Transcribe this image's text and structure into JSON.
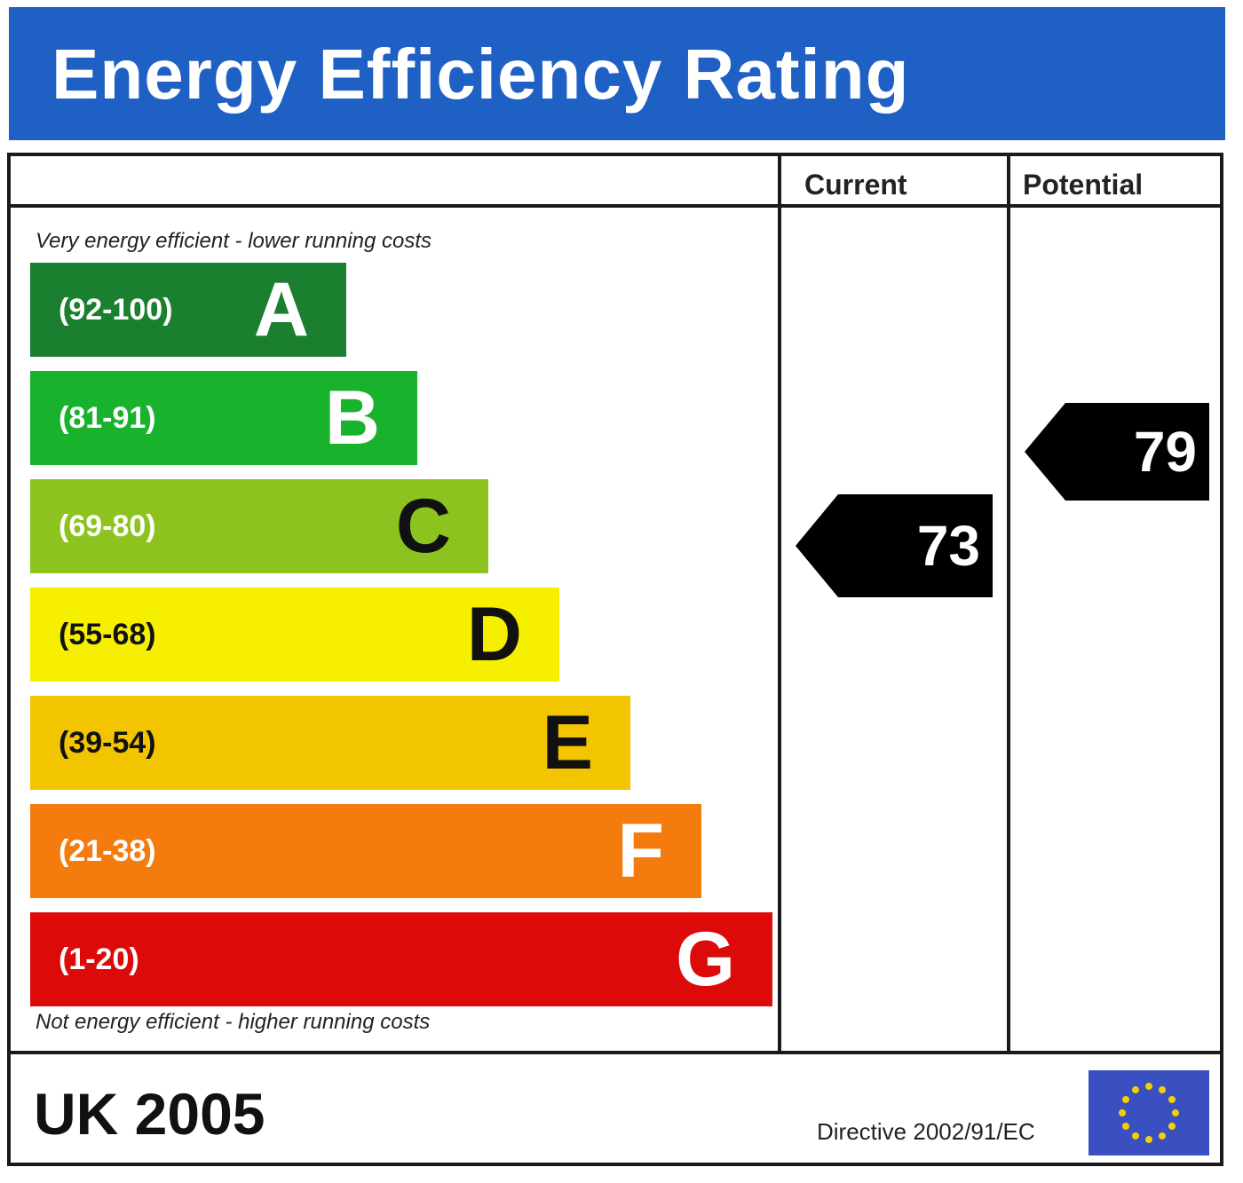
{
  "header": {
    "title": "Energy Efficiency Rating"
  },
  "columns": {
    "current": "Current",
    "potential": "Potential"
  },
  "chart_data": {
    "type": "bar",
    "title": "Energy Efficiency Rating",
    "top_note": "Very energy efficient - lower running costs",
    "bottom_note": "Not energy efficient - higher running costs",
    "bands": [
      {
        "letter": "A",
        "range": "(92-100)",
        "color": "#1a7f2e",
        "range_color": "#ffffff",
        "letter_color": "#ffffff",
        "min": 92,
        "max": 100
      },
      {
        "letter": "B",
        "range": "(81-91)",
        "color": "#19b22c",
        "range_color": "#ffffff",
        "letter_color": "#ffffff",
        "min": 81,
        "max": 91
      },
      {
        "letter": "C",
        "range": "(69-80)",
        "color": "#8cc31f",
        "range_color": "#ffffff",
        "letter_color": "#111111",
        "min": 69,
        "max": 80
      },
      {
        "letter": "D",
        "range": "(55-68)",
        "color": "#f6f000",
        "range_color": "#111111",
        "letter_color": "#111111",
        "min": 55,
        "max": 68
      },
      {
        "letter": "E",
        "range": "(39-54)",
        "color": "#f3c400",
        "range_color": "#111111",
        "letter_color": "#111111",
        "min": 39,
        "max": 54
      },
      {
        "letter": "F",
        "range": "(21-38)",
        "color": "#f47b0e",
        "range_color": "#ffffff",
        "letter_color": "#ffffff",
        "min": 21,
        "max": 38
      },
      {
        "letter": "G",
        "range": "(1-20)",
        "color": "#dd0a0a",
        "range_color": "#ffffff",
        "letter_color": "#ffffff",
        "min": 1,
        "max": 20
      }
    ],
    "current": 73,
    "potential": 79
  },
  "footer": {
    "region": "UK 2005",
    "directive": "Directive 2002/91/EC"
  },
  "colors": {
    "header": "#1f60c4",
    "arrow": "#000000",
    "eu_flag": "#3a4fc0",
    "eu_stars": "#f5d000"
  },
  "icons": {
    "flag": "eu-flag-icon"
  }
}
